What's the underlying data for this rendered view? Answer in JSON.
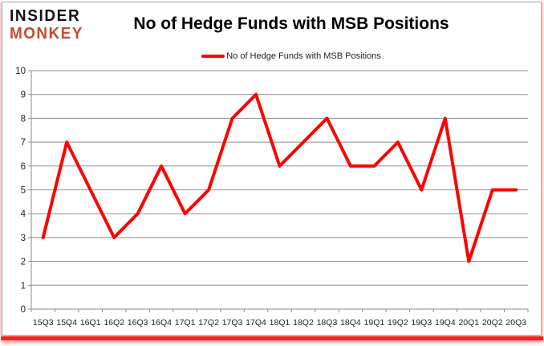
{
  "logo": {
    "line1": "INSIDER",
    "line2": "MONKEY"
  },
  "title": "No of Hedge Funds with MSB Positions",
  "legend": {
    "label": "No of Hedge Funds with MSB Positions"
  },
  "chart_data": {
    "type": "line",
    "title": "No of Hedge Funds with MSB Positions",
    "categories": [
      "15Q3",
      "15Q4",
      "16Q1",
      "16Q2",
      "16Q3",
      "16Q4",
      "17Q1",
      "17Q2",
      "17Q3",
      "17Q4",
      "18Q1",
      "18Q2",
      "18Q3",
      "18Q4",
      "19Q1",
      "19Q2",
      "19Q3",
      "19Q4",
      "20Q1",
      "20Q2",
      "20Q3"
    ],
    "series": [
      {
        "name": "No of Hedge Funds with MSB Positions",
        "color": "#fe0101",
        "values": [
          3,
          7,
          5,
          3,
          4,
          6,
          4,
          5,
          8,
          9,
          6,
          7,
          8,
          6,
          6,
          7,
          5,
          8,
          2,
          5,
          5
        ]
      }
    ],
    "xlabel": "",
    "ylabel": "",
    "ylim": [
      0,
      10
    ],
    "ytick_step": 1,
    "grid": true,
    "legend_position": "top-center"
  },
  "colors": {
    "line": "#fe0101",
    "grid": "#8e8e8e",
    "axis": "#8e8e8e",
    "tick_text": "#212121",
    "logo_black": "#121212",
    "logo_red": "#c64a33",
    "accent_bar": "#fa2020",
    "frame_border": "#a8a8a8"
  }
}
